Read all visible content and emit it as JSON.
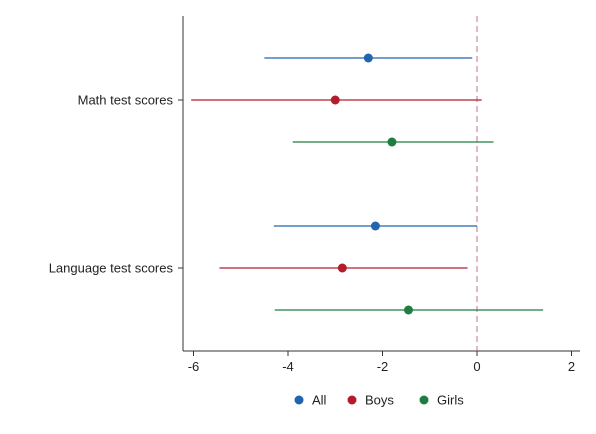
{
  "chart_data": {
    "type": "coefficient-plot",
    "orientation": "horizontal",
    "title": "",
    "xlabel": "",
    "ylabel": "",
    "xlim": [
      -6.2,
      2.2
    ],
    "x_ticks": [
      -6,
      -4,
      -2,
      0,
      2
    ],
    "reference_line": {
      "x": 0,
      "style": "dashed",
      "color": "#c2708c"
    },
    "grid": false,
    "legend_position": "bottom",
    "categories": [
      "Math test scores",
      "Language test scores"
    ],
    "series": [
      {
        "name": "All",
        "color": "#2165ae",
        "estimates": [
          -2.3,
          -2.15
        ],
        "ci_low": [
          -4.5,
          -4.3
        ],
        "ci_high": [
          -0.1,
          0.0
        ]
      },
      {
        "name": "Boys",
        "color": "#b31c2c",
        "estimates": [
          -3.0,
          -2.85
        ],
        "ci_low": [
          -6.05,
          -5.45
        ],
        "ci_high": [
          0.1,
          -0.2
        ]
      },
      {
        "name": "Girls",
        "color": "#1f7d3f",
        "estimates": [
          -1.8,
          -1.45
        ],
        "ci_low": [
          -3.9,
          -4.28
        ],
        "ci_high": [
          0.35,
          1.4
        ]
      }
    ]
  }
}
